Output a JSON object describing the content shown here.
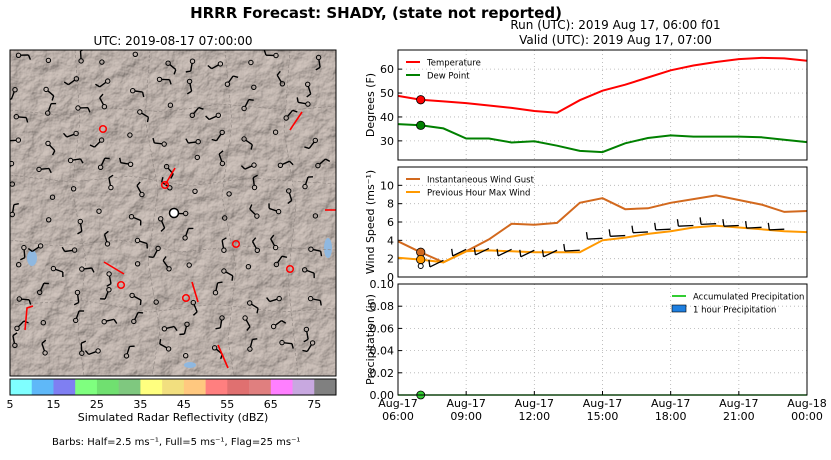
{
  "suptitle": "HRRR Forecast: SHADY, (state not reported)",
  "run_label": "Run (UTC): 2019 Aug 17, 06:00 f01",
  "valid_label": "Valid (UTC): 2019 Aug 17, 07:00",
  "map": {
    "title": "UTC: 2019-08-17 07:00:00",
    "colorbar_label": "Simulated Radar Reflectivity (dBZ)",
    "colorbar_ticks": [
      "5",
      "15",
      "25",
      "35",
      "45",
      "55",
      "65",
      "75"
    ],
    "colorbar_colors": [
      "#7fffff",
      "#5fb8f8",
      "#7f7ff2",
      "#7fff7f",
      "#70e070",
      "#7fc87f",
      "#ffff7f",
      "#f2df7f",
      "#ffc87f",
      "#ff7f7f",
      "#e07070",
      "#e07f7f",
      "#ff7fff",
      "#c8a8e0",
      "#808080"
    ],
    "barb_note": "Barbs: Half=2.5 ms⁻¹, Full=5 ms⁻¹, Flag=25 ms⁻¹",
    "terrain_color": "#bfb2ab",
    "highlight_color": "#ff0000"
  },
  "x_tick_labels": [
    {
      "top": "Aug-17",
      "bottom": "06:00"
    },
    {
      "top": "Aug-17",
      "bottom": "09:00"
    },
    {
      "top": "Aug-17",
      "bottom": "12:00"
    },
    {
      "top": "Aug-17",
      "bottom": "15:00"
    },
    {
      "top": "Aug-17",
      "bottom": "18:00"
    },
    {
      "top": "Aug-17",
      "bottom": "21:00"
    },
    {
      "top": "Aug-18",
      "bottom": "00:00"
    }
  ],
  "chart_data": [
    {
      "type": "line",
      "ylabel": "Degrees (F)",
      "ylim": [
        22,
        68
      ],
      "yticks": [
        30,
        40,
        50,
        60
      ],
      "x_hours": [
        0,
        1,
        2,
        3,
        4,
        5,
        6,
        7,
        8,
        9,
        10,
        11,
        12,
        13,
        14,
        15,
        16,
        17,
        18
      ],
      "grid": true,
      "legend_position": "top-left",
      "series": [
        {
          "name": "Temperature",
          "color": "#ff0000",
          "values": [
            48.8,
            47.2,
            46.5,
            45.8,
            44.8,
            43.8,
            42.5,
            41.8,
            47.0,
            51.0,
            53.5,
            56.5,
            59.5,
            61.5,
            63.0,
            64.2,
            64.7,
            64.5,
            63.5
          ]
        },
        {
          "name": "Dew Point",
          "color": "#008000",
          "values": [
            37.0,
            36.5,
            35.2,
            31.0,
            31.0,
            29.3,
            29.8,
            28.0,
            25.8,
            25.3,
            29.0,
            31.2,
            32.3,
            31.8,
            31.8,
            31.8,
            31.5,
            30.5,
            29.5
          ]
        }
      ],
      "marker_hour": 1
    },
    {
      "type": "line",
      "ylabel": "Wind Speed (ms⁻¹)",
      "ylim": [
        0,
        12
      ],
      "yticks": [
        0,
        2,
        4,
        6,
        8,
        10
      ],
      "x_hours": [
        0,
        1,
        2,
        3,
        4,
        5,
        6,
        7,
        8,
        9,
        10,
        11,
        12,
        13,
        14,
        15,
        16,
        17,
        18
      ],
      "grid": true,
      "legend_position": "top-left",
      "series": [
        {
          "name": "Instantaneous Wind Gust",
          "color": "#d2691e",
          "values": [
            3.9,
            2.7,
            1.6,
            2.8,
            4.1,
            5.8,
            5.7,
            5.9,
            8.1,
            8.6,
            7.4,
            7.5,
            8.1,
            8.5,
            8.9,
            8.4,
            7.9,
            7.1,
            7.2
          ]
        },
        {
          "name": "Previous Hour Max Wind",
          "color": "#ff9900",
          "values": [
            2.1,
            1.9,
            1.6,
            2.8,
            2.9,
            2.8,
            2.7,
            2.7,
            2.7,
            4.0,
            4.3,
            4.7,
            5.0,
            5.4,
            5.6,
            5.4,
            5.2,
            5.0,
            4.9
          ]
        }
      ],
      "marker_hour": 1
    },
    {
      "type": "bar",
      "ylabel": "Precipitation (in)",
      "ylim": [
        0,
        0.1
      ],
      "yticks": [
        "0.00",
        "0.02",
        "0.04",
        "0.06",
        "0.08",
        "0.10"
      ],
      "x_hours": [
        0,
        1,
        2,
        3,
        4,
        5,
        6,
        7,
        8,
        9,
        10,
        11,
        12,
        13,
        14,
        15,
        16,
        17,
        18
      ],
      "grid": true,
      "legend_position": "top-right",
      "series": [
        {
          "name": "Accumulated Precipitation",
          "color": "#32cd32",
          "values": [
            0,
            0,
            0,
            0,
            0,
            0,
            0,
            0,
            0,
            0,
            0,
            0,
            0,
            0,
            0,
            0,
            0,
            0,
            0
          ]
        },
        {
          "name": "1 hour Precipitation",
          "color": "#1e7fe0",
          "values": [
            0,
            0,
            0,
            0,
            0,
            0,
            0,
            0,
            0,
            0,
            0,
            0,
            0,
            0,
            0,
            0,
            0,
            0,
            0
          ]
        }
      ],
      "marker_hour": 1
    }
  ]
}
